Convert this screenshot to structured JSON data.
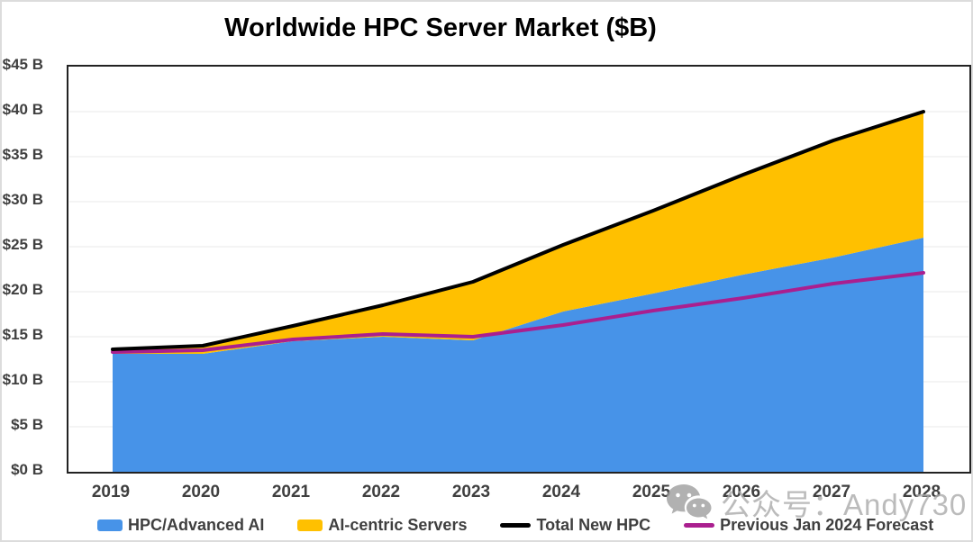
{
  "title": "Worldwide HPC Server Market ($B)",
  "watermark": {
    "icon": "wechat-icon",
    "text": "公众号：Andy730"
  },
  "colors": {
    "hpc_area": "#4793E8",
    "ai_area": "#FFC000",
    "total_line": "#000000",
    "forecast_line": "#AA1F8F",
    "axis_text": "#3F3F3F",
    "grid_line": "#F0F0F0",
    "plot_border": "#222222",
    "watermark_gray": "#ABABAB"
  },
  "chart_data": {
    "type": "area",
    "title": "Worldwide HPC Server Market ($B)",
    "x": [
      2019,
      2020,
      2021,
      2022,
      2023,
      2024,
      2025,
      2026,
      2027,
      2028
    ],
    "series": [
      {
        "name": "HPC/Advanced AI",
        "render": "stacked-area",
        "color": "#4793E8",
        "values": [
          13.1,
          13.1,
          14.5,
          15.0,
          14.6,
          17.8,
          19.8,
          21.9,
          23.8,
          26.0
        ]
      },
      {
        "name": "AI-centric Servers",
        "render": "stacked-area",
        "color": "#FFC000",
        "values": [
          0.5,
          0.9,
          1.7,
          3.5,
          6.5,
          7.4,
          9.2,
          11.1,
          13.0,
          14.0
        ]
      },
      {
        "name": "Total New HPC",
        "render": "line",
        "color": "#000000",
        "values": [
          13.6,
          14.0,
          16.2,
          18.5,
          21.1,
          25.2,
          29.0,
          33.0,
          36.8,
          40.0
        ]
      },
      {
        "name": "Previous Jan 2024 Forecast",
        "render": "line",
        "color": "#AA1F8F",
        "values": [
          13.3,
          13.5,
          14.7,
          15.3,
          15.0,
          16.3,
          17.9,
          19.3,
          20.9,
          22.1
        ]
      }
    ],
    "ylim": [
      0,
      45
    ],
    "ytick_step": 5,
    "ytick_labels_top_to_bottom": [
      "$45 B",
      "$40 B",
      "$35 B",
      "$30 B",
      "$25 B",
      "$20 B",
      "$15 B",
      "$10 B",
      "$5 B",
      "$0 B"
    ],
    "grid": true,
    "legend_position": "bottom"
  }
}
